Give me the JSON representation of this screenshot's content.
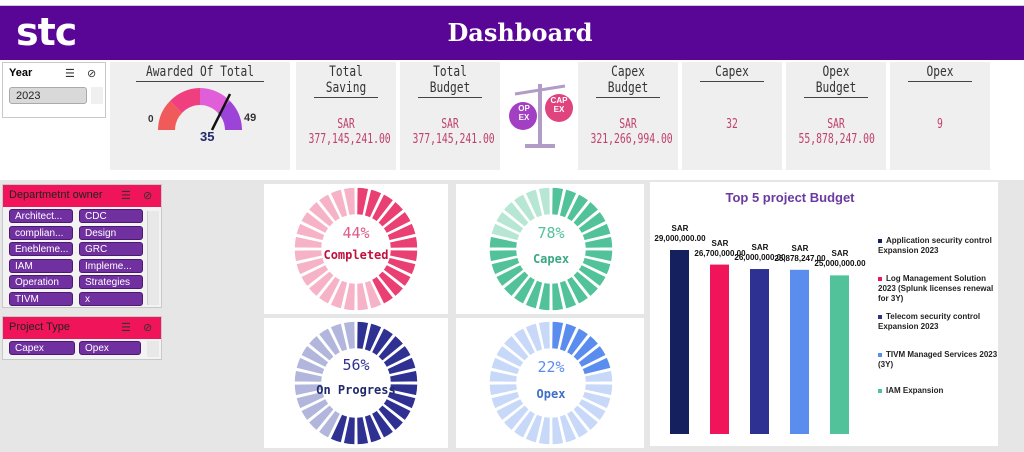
{
  "header": {
    "logo": "stc",
    "title": "Dashboard"
  },
  "year_slicer": {
    "title": "Year",
    "selected": "2023"
  },
  "kpis": {
    "awarded": {
      "title": "Awarded Of Total",
      "min": "0",
      "max": "49",
      "value": "35"
    },
    "total_saving": {
      "title": "Total Saving",
      "value": "SAR 377,145,241.00"
    },
    "total_budget": {
      "title": "Total Budget",
      "value": "SAR 377,145,241.00"
    },
    "capex_budget": {
      "title": "Capex Budget",
      "value": "SAR 321,266,994.00"
    },
    "capex": {
      "title": "Capex",
      "value": "32"
    },
    "opex_budget": {
      "title": "Opex Budget",
      "value": "SAR 55,878,247.00"
    },
    "opex": {
      "title": "Opex",
      "value": "9"
    }
  },
  "scale_icon": {
    "left_label": "OP EX",
    "right_label": "CAP EX"
  },
  "department_slicer": {
    "title": "Departmetnt owner",
    "items": [
      "Architect...",
      "CDC",
      "complian...",
      "Design",
      "Enebleme...",
      "GRC",
      "IAM",
      "Impleme...",
      "Operation",
      "Strategies",
      "TIVM",
      "x"
    ]
  },
  "project_type_slicer": {
    "title": "Project Type",
    "items": [
      "Capex",
      "Opex"
    ]
  },
  "rings": {
    "completed": {
      "percent": "44%",
      "label": "Completed",
      "value": 0.44,
      "color": "#ea3f72",
      "light": "#f6b3c8"
    },
    "capex": {
      "percent": "78%",
      "label": "Capex",
      "value": 0.78,
      "color": "#52c29a",
      "light": "#b8e6d4"
    },
    "on_progress": {
      "percent": "56%",
      "label": "On Progress",
      "value": 0.56,
      "color": "#2e3192",
      "light": "#b3b6dc"
    },
    "opex": {
      "percent": "22%",
      "label": "Opex",
      "value": 0.22,
      "color": "#5b8def",
      "light": "#c7d8f8"
    }
  },
  "chart_data": {
    "type": "bar",
    "title": "Top 5 project Budget",
    "categories": [
      "Application security control Expansion 2023",
      "Log Management Solution 2023 (Splunk licenses renewal for 3Y)",
      "Telecom security control Expansion 2023",
      "TIVM Managed Services 2023 (3Y)",
      "IAM Expansion"
    ],
    "values": [
      29000000,
      26700000,
      26000000,
      25878247,
      25000000
    ],
    "value_labels_top": [
      "SAR",
      "SAR",
      "SAR",
      "SAR",
      "SAR"
    ],
    "value_labels": [
      "29,000,000.00",
      "26,700,000.00",
      "26,000,000.00",
      "25,878,247.00",
      "25,000,000.00"
    ],
    "colors": [
      "#14215e",
      "#f0145a",
      "#2e3192",
      "#5b8def",
      "#52c29a"
    ],
    "legend": "right"
  }
}
